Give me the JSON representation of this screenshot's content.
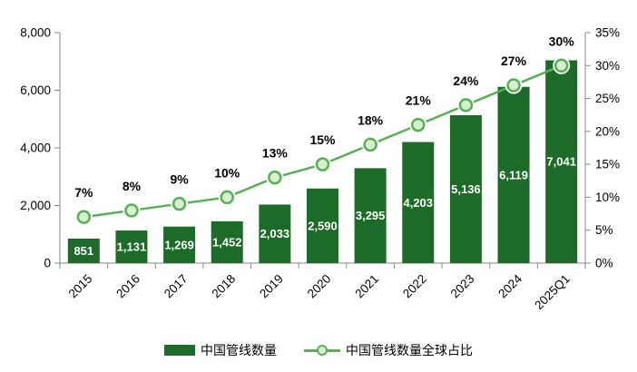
{
  "colors": {
    "bar": "#1d6b28",
    "line": "#57b154",
    "marker_fill": "#d9efd2",
    "axis": "#898989",
    "bar_label_text": "#ffffff",
    "text": "#000000",
    "background": "#ffffff"
  },
  "chart_data": {
    "type": "combo",
    "categories": [
      "2015",
      "2016",
      "2017",
      "2018",
      "2019",
      "2020",
      "2021",
      "2022",
      "2023",
      "2024",
      "2025Q1"
    ],
    "series": [
      {
        "name": "中国管线数量",
        "type": "bar",
        "axis": "left",
        "values": [
          851,
          1131,
          1269,
          1452,
          2033,
          2590,
          3295,
          4203,
          5136,
          6119,
          7041
        ],
        "labels": [
          "851",
          "1,131",
          "1,269",
          "1,452",
          "2,033",
          "2,590",
          "3,295",
          "4,203",
          "5,136",
          "6,119",
          "7,041"
        ]
      },
      {
        "name": "中国管线数量全球占比",
        "type": "line",
        "axis": "right",
        "values": [
          7,
          8,
          9,
          10,
          13,
          15,
          18,
          21,
          24,
          27,
          30
        ],
        "labels": [
          "7%",
          "8%",
          "9%",
          "10%",
          "13%",
          "15%",
          "18%",
          "21%",
          "24%",
          "27%",
          "30%"
        ]
      }
    ],
    "left_axis": {
      "min": 0,
      "max": 8000,
      "ticks": [
        0,
        2000,
        4000,
        6000,
        8000
      ],
      "tick_labels": [
        "0",
        "2,000",
        "4,000",
        "6,000",
        "8,000"
      ]
    },
    "right_axis": {
      "min": 0,
      "max": 35,
      "ticks": [
        0,
        5,
        10,
        15,
        20,
        25,
        30,
        35
      ],
      "tick_labels": [
        "0%",
        "5%",
        "10%",
        "15%",
        "20%",
        "25%",
        "30%",
        "35%"
      ]
    },
    "grid": false,
    "legend_position": "bottom"
  }
}
